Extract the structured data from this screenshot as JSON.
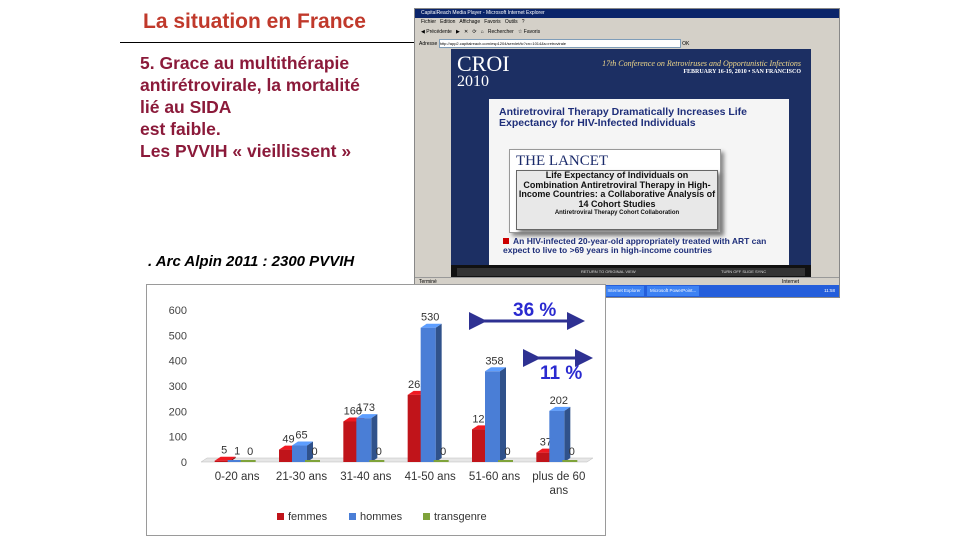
{
  "slide": {
    "title": "La situation en France",
    "bullet_lines": [
      "5. Grace au multithérapie",
      "antirétrovirale, la mortalité",
      "lié au SIDA",
      "est faible.",
      "Les PVVIH « vieillissent »"
    ],
    "note": ". Arc Alpin 2011 : 2300 PVVIH"
  },
  "screenshot": {
    "window_title": "CapitalReach Media Player - Microsoft Internet Explorer",
    "address_label": "Adresse",
    "address": "http://app2.capitalreach.com/esp1204/servlet/tc?cn=1014&s=retrovirale",
    "go_label": "OK",
    "croi_logo": "CROI",
    "croi_year": "2010",
    "conference": "17th Conference on Retroviruses and Opportunistic Infections",
    "conference_dates": "FEBRUARY 16-19, 2010 • SAN FRANCISCO",
    "slide_heading": "Antiretroviral Therapy Dramatically Increases Life Expectancy for HIV-Infected Individuals",
    "journal": "THE LANCET",
    "article_title": "Life Expectancy of Individuals on Combination Antiretroviral Therapy in High-Income Countries: a Collaborative Analysis of 14 Cohort Studies",
    "article_authors": "Antiretroviral Therapy Cohort Collaboration",
    "bullet": "An HIV-infected 20-year-old appropriately treated with ART can expect to live to >69 years in high-income countries",
    "player_label": "RETURN TO ORIGINAL VIEW",
    "player_label2": "TURN OFF SLIDE SYNC",
    "status_left": "Terminé",
    "status_right": "Internet",
    "start": "Démarrer",
    "taskbar_items": [
      "2 Microsoft Office ...",
      "2 Explorateur Wi...",
      "RB0042C - Viologie R...",
      "2 Internet Explorer",
      "Microsoft PowerPoint..."
    ],
    "clock": "11:58"
  },
  "annotations": {
    "arrow1_label": "36 %",
    "arrow2_label": "11 %",
    "arrow_color": "#2e3192"
  },
  "chart_data": {
    "type": "bar",
    "categories": [
      "0-20 ans",
      "21-30 ans",
      "31-40 ans",
      "41-50 ans",
      "51-60 ans",
      "plus de 60 ans"
    ],
    "series": [
      {
        "name": "femmes",
        "color": "#c0141a",
        "values": [
          5,
          49,
          160,
          265,
          129,
          37
        ]
      },
      {
        "name": "hommes",
        "color": "#4a7ed6",
        "values": [
          1,
          65,
          173,
          530,
          358,
          202
        ]
      },
      {
        "name": "transgenre",
        "color": "#7fa33a",
        "values": [
          0,
          0,
          0,
          0,
          0,
          0
        ]
      }
    ],
    "ylim": [
      0,
      600
    ],
    "yticks": [
      0,
      100,
      200,
      300,
      400,
      500,
      600
    ],
    "grid": false,
    "legend": "bottom",
    "style": "3d"
  }
}
